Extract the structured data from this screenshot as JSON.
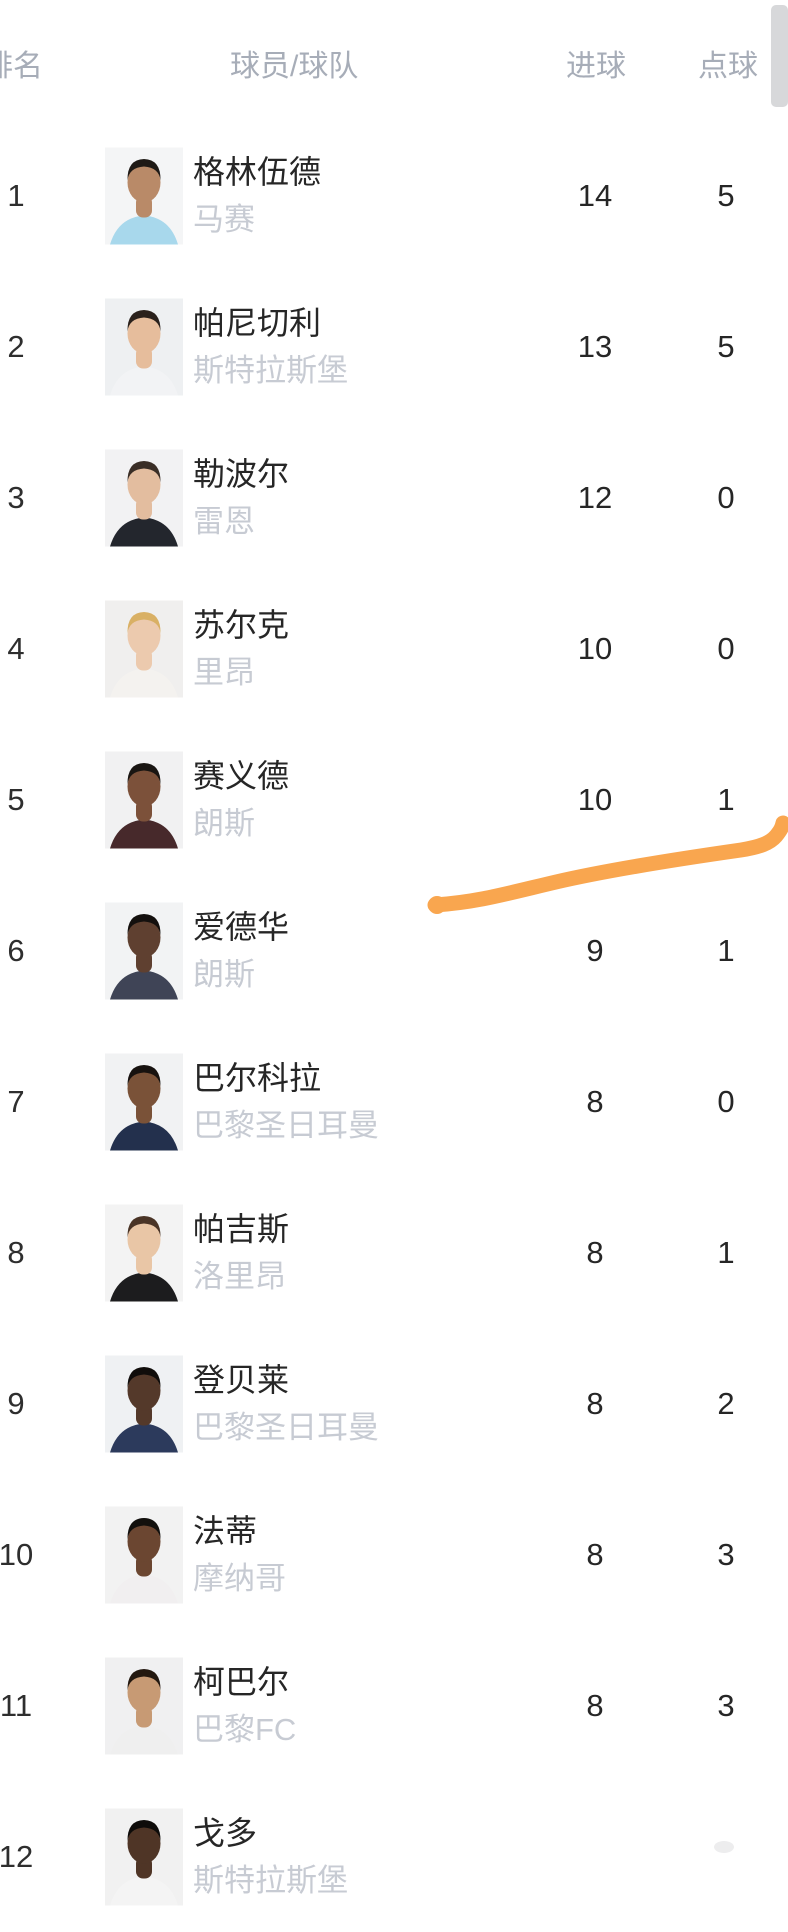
{
  "header": {
    "rank": "排名",
    "player_team": "球员/球队",
    "goals": "进球",
    "penalties": "点球"
  },
  "annotation": {
    "type": "hand-drawn-highlighter-stroke",
    "color": "#F9A64F",
    "note": "underline stroke drawn beneath rank-5 row, rising to the right with an upward hook"
  },
  "scrollbar": {
    "color": "#d7d8da"
  },
  "rows": [
    {
      "rank": "1",
      "name": "格林伍德",
      "team": "马赛",
      "goals": "14",
      "penalties": "5",
      "avatar": {
        "skin": "#b98a68",
        "hair": "#1f1a16",
        "shirt": "#a8d8ec",
        "bg": "#f4f5f6"
      }
    },
    {
      "rank": "2",
      "name": "帕尼切利",
      "team": "斯特拉斯堡",
      "goals": "13",
      "penalties": "5",
      "avatar": {
        "skin": "#e6bd9c",
        "hair": "#2a211c",
        "shirt": "#f2f3f5",
        "bg": "#eef0f2"
      }
    },
    {
      "rank": "3",
      "name": "勒波尔",
      "team": "雷恩",
      "goals": "12",
      "penalties": "0",
      "avatar": {
        "skin": "#e3bd9f",
        "hair": "#3a2e26",
        "shirt": "#23262d",
        "bg": "#f2f2f3"
      }
    },
    {
      "rank": "4",
      "name": "苏尔克",
      "team": "里昂",
      "goals": "10",
      "penalties": "0",
      "avatar": {
        "skin": "#eccaae",
        "hair": "#d9b064",
        "shirt": "#f4f2ef",
        "bg": "#f0efee"
      }
    },
    {
      "rank": "5",
      "name": "赛义德",
      "team": "朗斯",
      "goals": "10",
      "penalties": "1",
      "avatar": {
        "skin": "#7c513a",
        "hair": "#191512",
        "shirt": "#47292b",
        "bg": "#f1f1f2"
      }
    },
    {
      "rank": "6",
      "name": "爱德华",
      "team": "朗斯",
      "goals": "9",
      "penalties": "1",
      "avatar": {
        "skin": "#5f4030",
        "hair": "#14100e",
        "shirt": "#3f4456",
        "bg": "#f2f3f4"
      }
    },
    {
      "rank": "7",
      "name": "巴尔科拉",
      "team": "巴黎圣日耳曼",
      "goals": "8",
      "penalties": "0",
      "avatar": {
        "skin": "#7a5238",
        "hair": "#17120f",
        "shirt": "#23304d",
        "bg": "#f1f2f3"
      }
    },
    {
      "rank": "8",
      "name": "帕吉斯",
      "team": "洛里昂",
      "goals": "8",
      "penalties": "1",
      "avatar": {
        "skin": "#e9c6a6",
        "hair": "#4a3426",
        "shirt": "#1c1c1e",
        "bg": "#f3f3f3"
      }
    },
    {
      "rank": "9",
      "name": "登贝莱",
      "team": "巴黎圣日耳曼",
      "goals": "8",
      "penalties": "2",
      "avatar": {
        "skin": "#54392a",
        "hair": "#100d0b",
        "shirt": "#2c3a5c",
        "bg": "#eff1f3"
      }
    },
    {
      "rank": "10",
      "name": "法蒂",
      "team": "摩纳哥",
      "goals": "8",
      "penalties": "3",
      "avatar": {
        "skin": "#6b4631",
        "hair": "#12100d",
        "shirt": "#f1eff0",
        "bg": "#f2f2f2"
      }
    },
    {
      "rank": "11",
      "name": "柯巴尔",
      "team": "巴黎FC",
      "goals": "8",
      "penalties": "3",
      "avatar": {
        "skin": "#c79a74",
        "hair": "#23180f",
        "shirt": "#efefef",
        "bg": "#f0f0f1"
      }
    },
    {
      "rank": "12",
      "name": "戈多",
      "team": "斯特拉斯堡",
      "goals": "",
      "penalties": "",
      "avatar": {
        "skin": "#4f3526",
        "hair": "#0e0c0a",
        "shirt": "#f4f4f4",
        "bg": "#f1f1f1"
      }
    }
  ]
}
